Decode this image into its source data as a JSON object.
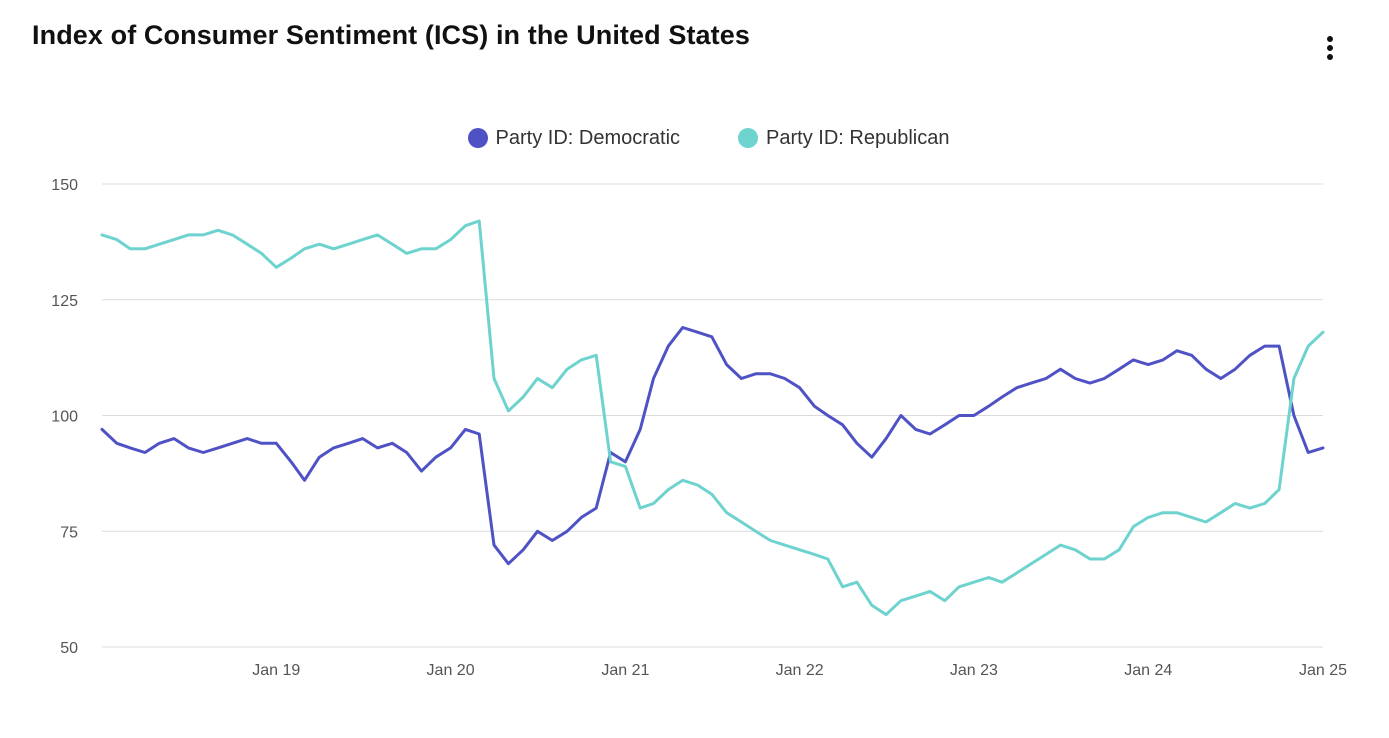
{
  "header": {
    "title": "Index of Consumer Sentiment (ICS) in the United States",
    "menu_icon": "vertical-ellipsis-icon"
  },
  "chart_data": {
    "type": "line",
    "title": "Index of Consumer Sentiment (ICS) in the United States",
    "xlabel": "",
    "ylabel": "",
    "x_range": [
      "2018-01-01",
      "2025-01-01"
    ],
    "ylim": [
      50,
      150
    ],
    "y_ticks": [
      50,
      75,
      100,
      125,
      150
    ],
    "y_tick_labels": [
      "50",
      "75",
      "100",
      "125",
      "150"
    ],
    "x_ticks": [
      "2019-01-01",
      "2020-01-01",
      "2021-01-01",
      "2022-01-01",
      "2023-01-01",
      "2024-01-01",
      "2025-01-01"
    ],
    "x_tick_labels": [
      "Jan 19",
      "Jan 20",
      "Jan 21",
      "Jan 22",
      "Jan 23",
      "Jan 24",
      "Jan 25"
    ],
    "grid": "horizontal",
    "legend_position": "top-center",
    "series": [
      {
        "name": "Party ID: Democratic",
        "color": "#4f52c4",
        "points": [
          [
            "2018-01-01",
            97
          ],
          [
            "2018-02-01",
            94
          ],
          [
            "2018-03-01",
            93
          ],
          [
            "2018-04-01",
            92
          ],
          [
            "2018-05-01",
            94
          ],
          [
            "2018-06-01",
            95
          ],
          [
            "2018-07-01",
            93
          ],
          [
            "2018-08-01",
            92
          ],
          [
            "2018-09-01",
            93
          ],
          [
            "2018-10-01",
            94
          ],
          [
            "2018-11-01",
            95
          ],
          [
            "2018-12-01",
            94
          ],
          [
            "2019-01-01",
            94
          ],
          [
            "2019-02-01",
            90
          ],
          [
            "2019-03-01",
            86
          ],
          [
            "2019-04-01",
            91
          ],
          [
            "2019-05-01",
            93
          ],
          [
            "2019-06-01",
            94
          ],
          [
            "2019-07-01",
            95
          ],
          [
            "2019-08-01",
            93
          ],
          [
            "2019-09-01",
            94
          ],
          [
            "2019-10-01",
            92
          ],
          [
            "2019-11-01",
            88
          ],
          [
            "2019-12-01",
            91
          ],
          [
            "2020-01-01",
            93
          ],
          [
            "2020-02-01",
            97
          ],
          [
            "2020-03-01",
            96
          ],
          [
            "2020-04-01",
            72
          ],
          [
            "2020-05-01",
            68
          ],
          [
            "2020-06-01",
            71
          ],
          [
            "2020-07-01",
            75
          ],
          [
            "2020-08-01",
            73
          ],
          [
            "2020-09-01",
            75
          ],
          [
            "2020-10-01",
            78
          ],
          [
            "2020-11-01",
            80
          ],
          [
            "2020-12-01",
            92
          ],
          [
            "2021-01-01",
            90
          ],
          [
            "2021-02-01",
            97
          ],
          [
            "2021-03-01",
            108
          ],
          [
            "2021-04-01",
            115
          ],
          [
            "2021-05-01",
            119
          ],
          [
            "2021-06-01",
            118
          ],
          [
            "2021-07-01",
            117
          ],
          [
            "2021-08-01",
            111
          ],
          [
            "2021-09-01",
            108
          ],
          [
            "2021-10-01",
            109
          ],
          [
            "2021-11-01",
            109
          ],
          [
            "2021-12-01",
            108
          ],
          [
            "2022-01-01",
            106
          ],
          [
            "2022-02-01",
            102
          ],
          [
            "2022-03-01",
            100
          ],
          [
            "2022-04-01",
            98
          ],
          [
            "2022-05-01",
            94
          ],
          [
            "2022-06-01",
            91
          ],
          [
            "2022-07-01",
            95
          ],
          [
            "2022-08-01",
            100
          ],
          [
            "2022-09-01",
            97
          ],
          [
            "2022-10-01",
            96
          ],
          [
            "2022-11-01",
            98
          ],
          [
            "2022-12-01",
            100
          ],
          [
            "2023-01-01",
            100
          ],
          [
            "2023-02-01",
            102
          ],
          [
            "2023-03-01",
            104
          ],
          [
            "2023-04-01",
            106
          ],
          [
            "2023-05-01",
            107
          ],
          [
            "2023-06-01",
            108
          ],
          [
            "2023-07-01",
            110
          ],
          [
            "2023-08-01",
            108
          ],
          [
            "2023-09-01",
            107
          ],
          [
            "2023-10-01",
            108
          ],
          [
            "2023-11-01",
            110
          ],
          [
            "2023-12-01",
            112
          ],
          [
            "2024-01-01",
            111
          ],
          [
            "2024-02-01",
            112
          ],
          [
            "2024-03-01",
            114
          ],
          [
            "2024-04-01",
            113
          ],
          [
            "2024-05-01",
            110
          ],
          [
            "2024-06-01",
            108
          ],
          [
            "2024-07-01",
            110
          ],
          [
            "2024-08-01",
            113
          ],
          [
            "2024-09-01",
            115
          ],
          [
            "2024-10-01",
            115
          ],
          [
            "2024-11-01",
            100
          ],
          [
            "2024-12-01",
            92
          ],
          [
            "2025-01-01",
            93
          ]
        ]
      },
      {
        "name": "Party ID: Republican",
        "color": "#6ed3cf",
        "points": [
          [
            "2018-01-01",
            139
          ],
          [
            "2018-02-01",
            138
          ],
          [
            "2018-03-01",
            136
          ],
          [
            "2018-04-01",
            136
          ],
          [
            "2018-05-01",
            137
          ],
          [
            "2018-06-01",
            138
          ],
          [
            "2018-07-01",
            139
          ],
          [
            "2018-08-01",
            139
          ],
          [
            "2018-09-01",
            140
          ],
          [
            "2018-10-01",
            139
          ],
          [
            "2018-11-01",
            137
          ],
          [
            "2018-12-01",
            135
          ],
          [
            "2019-01-01",
            132
          ],
          [
            "2019-02-01",
            134
          ],
          [
            "2019-03-01",
            136
          ],
          [
            "2019-04-01",
            137
          ],
          [
            "2019-05-01",
            136
          ],
          [
            "2019-06-01",
            137
          ],
          [
            "2019-07-01",
            138
          ],
          [
            "2019-08-01",
            139
          ],
          [
            "2019-09-01",
            137
          ],
          [
            "2019-10-01",
            135
          ],
          [
            "2019-11-01",
            136
          ],
          [
            "2019-12-01",
            136
          ],
          [
            "2020-01-01",
            138
          ],
          [
            "2020-02-01",
            141
          ],
          [
            "2020-03-01",
            142
          ],
          [
            "2020-04-01",
            108
          ],
          [
            "2020-05-01",
            101
          ],
          [
            "2020-06-01",
            104
          ],
          [
            "2020-07-01",
            108
          ],
          [
            "2020-08-01",
            106
          ],
          [
            "2020-09-01",
            110
          ],
          [
            "2020-10-01",
            112
          ],
          [
            "2020-11-01",
            113
          ],
          [
            "2020-12-01",
            90
          ],
          [
            "2021-01-01",
            89
          ],
          [
            "2021-02-01",
            80
          ],
          [
            "2021-03-01",
            81
          ],
          [
            "2021-04-01",
            84
          ],
          [
            "2021-05-01",
            86
          ],
          [
            "2021-06-01",
            85
          ],
          [
            "2021-07-01",
            83
          ],
          [
            "2021-08-01",
            79
          ],
          [
            "2021-09-01",
            77
          ],
          [
            "2021-10-01",
            75
          ],
          [
            "2021-11-01",
            73
          ],
          [
            "2021-12-01",
            72
          ],
          [
            "2022-01-01",
            71
          ],
          [
            "2022-02-01",
            70
          ],
          [
            "2022-03-01",
            69
          ],
          [
            "2022-04-01",
            63
          ],
          [
            "2022-05-01",
            64
          ],
          [
            "2022-06-01",
            59
          ],
          [
            "2022-07-01",
            57
          ],
          [
            "2022-08-01",
            60
          ],
          [
            "2022-09-01",
            61
          ],
          [
            "2022-10-01",
            62
          ],
          [
            "2022-11-01",
            60
          ],
          [
            "2022-12-01",
            63
          ],
          [
            "2023-01-01",
            64
          ],
          [
            "2023-02-01",
            65
          ],
          [
            "2023-03-01",
            64
          ],
          [
            "2023-04-01",
            66
          ],
          [
            "2023-05-01",
            68
          ],
          [
            "2023-06-01",
            70
          ],
          [
            "2023-07-01",
            72
          ],
          [
            "2023-08-01",
            71
          ],
          [
            "2023-09-01",
            69
          ],
          [
            "2023-10-01",
            69
          ],
          [
            "2023-11-01",
            71
          ],
          [
            "2023-12-01",
            76
          ],
          [
            "2024-01-01",
            78
          ],
          [
            "2024-02-01",
            79
          ],
          [
            "2024-03-01",
            79
          ],
          [
            "2024-04-01",
            78
          ],
          [
            "2024-05-01",
            77
          ],
          [
            "2024-06-01",
            79
          ],
          [
            "2024-07-01",
            81
          ],
          [
            "2024-08-01",
            80
          ],
          [
            "2024-09-01",
            81
          ],
          [
            "2024-10-01",
            84
          ],
          [
            "2024-11-01",
            108
          ],
          [
            "2024-12-01",
            115
          ],
          [
            "2025-01-01",
            118
          ]
        ]
      }
    ]
  }
}
